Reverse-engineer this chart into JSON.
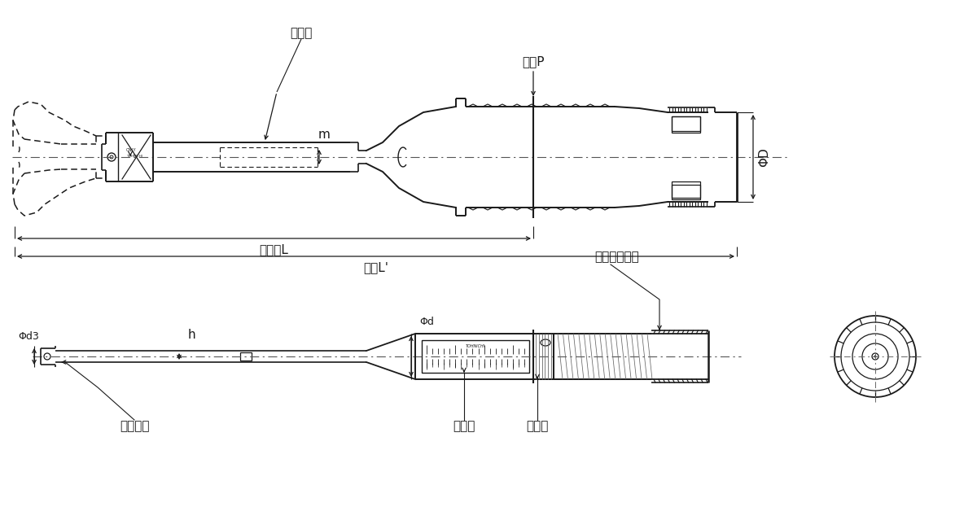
{
  "bg_color": "#ffffff",
  "line_color": "#1a1a1a",
  "text_color": "#1a1a1a",
  "figsize": [
    12.0,
    6.23
  ],
  "dpi": 100,
  "labels": {
    "type_name": "型式名",
    "hand_force": "手力P",
    "effective_length": "有効長L",
    "total_length": "全長L'",
    "phi_D": "ΦD",
    "phi_d3": "Φd3",
    "phi_d": "Φd",
    "h_label": "h",
    "m_label": "m",
    "adjuster": "アジャスター",
    "serial_no": "製造番号",
    "main_scale": "主目盛",
    "sub_scale": "剩目盛"
  }
}
